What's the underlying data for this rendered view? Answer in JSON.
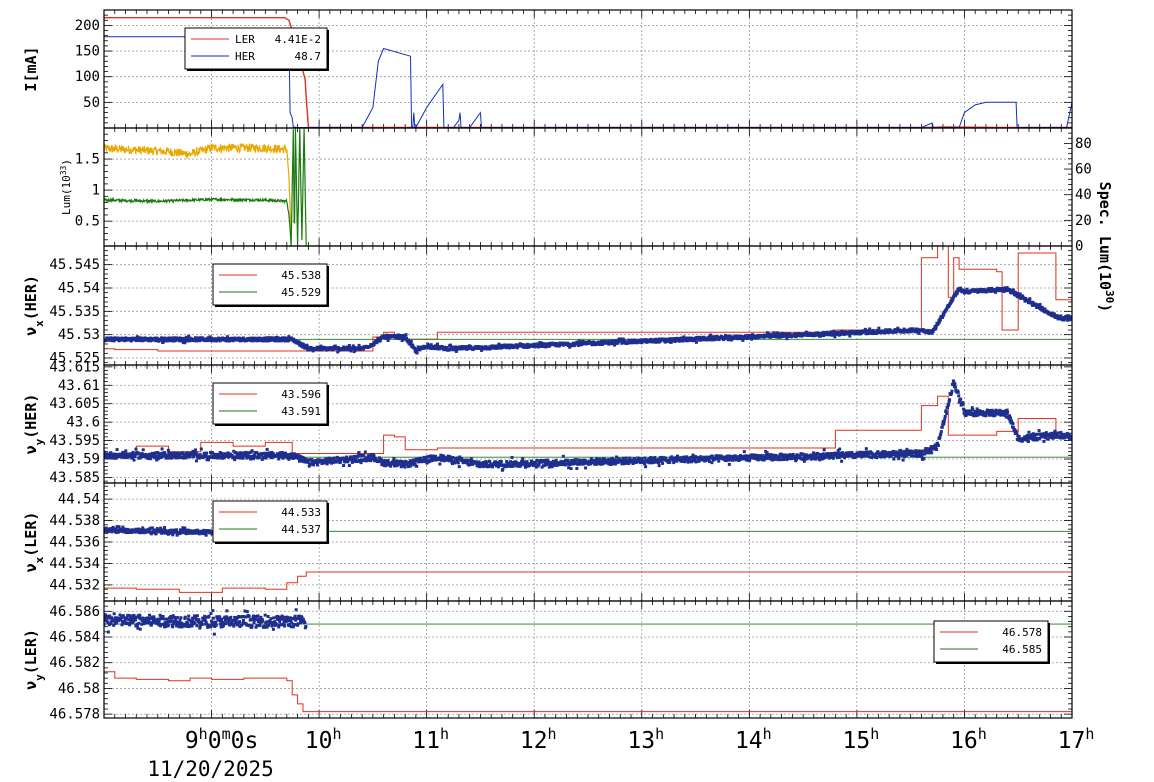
{
  "chart_data": {
    "type": "line",
    "x_axis": {
      "range": [
        8.0,
        17.0
      ],
      "ticks": [
        {
          "value": 9.0,
          "label": "9",
          "sup": "h",
          "extra": "0",
          "extra_sup": "m",
          "extra2": "0s"
        },
        {
          "value": 10.0,
          "label": "10",
          "sup": "h"
        },
        {
          "value": 11.0,
          "label": "11",
          "sup": "h"
        },
        {
          "value": 12.0,
          "label": "12",
          "sup": "h"
        },
        {
          "value": 13.0,
          "label": "13",
          "sup": "h"
        },
        {
          "value": 14.0,
          "label": "14",
          "sup": "h"
        },
        {
          "value": 15.0,
          "label": "15",
          "sup": "h"
        },
        {
          "value": 16.0,
          "label": "16",
          "sup": "h"
        },
        {
          "value": 17.0,
          "label": "17",
          "sup": "h"
        }
      ],
      "date_label": "11/20/2025",
      "grid": true
    },
    "panels": [
      {
        "id": "current",
        "ylabel": "I[mA]",
        "ylim": [
          0,
          230
        ],
        "yticks": [
          50,
          100,
          150,
          200
        ],
        "legend": {
          "placement": "top-left",
          "entries": [
            {
              "name": "LER",
              "value": "4.41E-2",
              "color": "#e0301e"
            },
            {
              "name": "HER",
              "value": "48.7",
              "color": "#1030c0"
            }
          ]
        },
        "series": [
          {
            "name": "LER",
            "color": "#e0301e",
            "width": 1.4,
            "x": [
              8.0,
              9.68,
              9.72,
              9.75,
              9.78,
              9.8,
              9.83,
              9.85,
              9.87,
              9.88,
              9.9,
              9.92,
              11.0,
              14.6,
              15.7,
              15.8,
              16.3,
              16.4,
              17.0
            ],
            "y": [
              215,
              215,
              210,
              190,
              170,
              150,
              130,
              110,
              95,
              60,
              2,
              1,
              1,
              1,
              1,
              2,
              1,
              1,
              1
            ]
          },
          {
            "name": "HER",
            "color": "#1030c0",
            "width": 1.0,
            "x": [
              8.0,
              9.6,
              9.65,
              9.7,
              9.72,
              9.73,
              9.75,
              9.76,
              9.8,
              10.4,
              10.5,
              10.55,
              10.6,
              10.85,
              10.86,
              10.87,
              10.88,
              10.89,
              10.9,
              11.0,
              11.1,
              11.15,
              11.16,
              11.2,
              11.25,
              11.3,
              11.31,
              11.32,
              11.4,
              11.5,
              11.51,
              11.52,
              15.6,
              15.7,
              15.71,
              15.75,
              15.95,
              16.0,
              16.1,
              16.2,
              16.48,
              16.49,
              16.5,
              16.95,
              17.0
            ],
            "y": [
              178,
              178,
              178,
              176,
              173,
              30,
              20,
              2,
              1,
              1,
              40,
              130,
              155,
              140,
              1,
              1,
              30,
              1,
              1,
              40,
              70,
              85,
              1,
              1,
              1,
              15,
              30,
              1,
              1,
              30,
              1,
              1,
              1,
              10,
              1,
              1,
              1,
              30,
              45,
              50,
              50,
              1,
              1,
              1,
              50
            ]
          }
        ]
      },
      {
        "id": "lum",
        "ylabel": "Lum(10",
        "ylabel_sup": "33",
        "ylabel_end": ")",
        "ylim": [
          0.1,
          2.0
        ],
        "yticks": [
          0.5,
          1,
          1.5
        ],
        "right_ylabel": "Spec. Lum(10",
        "right_ylabel_sup": "30",
        "right_ylabel_end": ")",
        "right_ylim": [
          0,
          92
        ],
        "right_yticks": [
          0,
          20,
          40,
          60,
          80
        ],
        "series": [
          {
            "name": "Luminosity",
            "color": "#e8a800",
            "width": 1.2,
            "noise": 0.07,
            "x": [
              8.0,
              8.6,
              8.8,
              9.0,
              9.5,
              9.7,
              9.72,
              9.74
            ],
            "y": [
              1.67,
              1.62,
              1.58,
              1.68,
              1.68,
              1.65,
              1.2,
              0.2
            ]
          },
          {
            "name": "Specific Luminosity",
            "color": "#1a7a10",
            "width": 1.2,
            "noise": 0.02,
            "x": [
              8.0,
              8.5,
              9.0,
              9.5,
              9.7,
              9.72,
              9.74,
              9.76,
              9.77,
              9.78,
              9.8,
              9.82,
              9.84,
              9.86,
              9.88
            ],
            "y": [
              0.84,
              0.82,
              0.85,
              0.84,
              0.82,
              0.6,
              0.1,
              2.0,
              0.1,
              2.0,
              0.1,
              2.0,
              0.2,
              2.0,
              0.1
            ]
          }
        ]
      },
      {
        "id": "nux-her",
        "ylabel": "ν",
        "ylabel_sub": "x",
        "ylabel_end": "(HER)",
        "ylim": [
          45.5235,
          45.549
        ],
        "yticks": [
          45.525,
          45.53,
          45.535,
          45.54,
          45.545
        ],
        "legend": {
          "placement": "top-left",
          "entries": [
            {
              "name": "",
              "value": "45.538",
              "color": "#e0301e"
            },
            {
              "name": "",
              "value": "45.529",
              "color": "#1a7a10"
            }
          ]
        },
        "series": [
          {
            "name": "set",
            "color": "#e0301e",
            "width": 1.0,
            "step": true,
            "x": [
              8.0,
              8.1,
              8.3,
              8.5,
              9.0,
              9.5,
              9.75,
              10.5,
              10.6,
              10.7,
              11.1,
              14.8,
              15.6,
              15.75,
              15.85,
              15.9,
              15.95,
              16.3,
              16.35,
              16.5,
              16.85,
              17.0
            ],
            "y": [
              45.527,
              45.5268,
              45.5268,
              45.5265,
              45.5265,
              45.5265,
              45.5265,
              45.5295,
              45.5305,
              45.529,
              45.5305,
              45.531,
              45.5465,
              45.549,
              45.538,
              45.5465,
              45.544,
              45.5435,
              45.531,
              45.5475,
              45.5375,
              45.5375
            ]
          },
          {
            "name": "ref",
            "color": "#1a7a10",
            "width": 0.9,
            "step": true,
            "x": [
              8.0,
              17.0
            ],
            "y": [
              45.529,
              45.529
            ]
          },
          {
            "name": "meas",
            "color": "#1f2f8f",
            "dots": true,
            "noise": 0.00035,
            "x": [
              8.0,
              9.0,
              9.75,
              9.9,
              10.4,
              10.5,
              10.6,
              10.8,
              10.9,
              11.0,
              11.2,
              11.5,
              15.6,
              15.7,
              15.95,
              16.0,
              16.4,
              16.5,
              16.9,
              17.0
            ],
            "y": [
              45.529,
              45.529,
              45.529,
              45.527,
              45.527,
              45.528,
              45.5295,
              45.5295,
              45.5265,
              45.5275,
              45.527,
              45.5272,
              45.531,
              45.5305,
              45.5398,
              45.5392,
              45.5398,
              45.5383,
              45.5333,
              45.5335
            ]
          }
        ]
      },
      {
        "id": "nuy-her",
        "ylabel": "ν",
        "ylabel_sub": "y",
        "ylabel_end": "(HER)",
        "ylim": [
          43.5835,
          43.6155
        ],
        "yticks": [
          43.585,
          43.59,
          43.595,
          43.6,
          43.605,
          43.61,
          43.615
        ],
        "legend": {
          "placement": "top-left",
          "entries": [
            {
              "name": "",
              "value": "43.596",
              "color": "#e0301e"
            },
            {
              "name": "",
              "value": "43.591",
              "color": "#1a7a10"
            }
          ]
        },
        "series": [
          {
            "name": "set",
            "color": "#e0301e",
            "width": 1.0,
            "step": true,
            "x": [
              8.0,
              8.3,
              8.6,
              8.9,
              9.2,
              9.5,
              9.75,
              10.6,
              10.7,
              10.8,
              11.1,
              14.8,
              15.6,
              15.75,
              15.85,
              16.3,
              16.5,
              16.85,
              17.0
            ],
            "y": [
              43.5915,
              43.5935,
              43.592,
              43.5945,
              43.5935,
              43.5945,
              43.5915,
              43.5965,
              43.596,
              43.5925,
              43.593,
              43.5978,
              43.6045,
              43.607,
              43.5965,
              43.5975,
              43.601,
              43.5965,
              43.5965
            ]
          },
          {
            "name": "ref",
            "color": "#1a7a10",
            "width": 0.9,
            "step": true,
            "x": [
              8.0,
              17.0
            ],
            "y": [
              43.5905,
              43.5905
            ]
          },
          {
            "name": "meas",
            "color": "#1f2f8f",
            "dots": true,
            "noise": 0.0008,
            "x": [
              8.0,
              9.0,
              9.75,
              9.9,
              10.5,
              10.6,
              10.8,
              11.1,
              11.5,
              15.6,
              15.75,
              15.9,
              16.0,
              16.4,
              16.5,
              16.9,
              17.0
            ],
            "y": [
              43.591,
              43.591,
              43.591,
              43.589,
              43.5905,
              43.589,
              43.5885,
              43.5905,
              43.5885,
              43.5915,
              43.5935,
              43.611,
              43.6025,
              43.6025,
              43.5955,
              43.5965,
              43.596
            ]
          }
        ]
      },
      {
        "id": "nux-ler",
        "ylabel": "ν",
        "ylabel_sub": "x",
        "ylabel_end": "(LER)",
        "ylim": [
          44.5305,
          44.5415
        ],
        "yticks": [
          44.532,
          44.534,
          44.536,
          44.538,
          44.54
        ],
        "legend": {
          "placement": "top-left",
          "entries": [
            {
              "name": "",
              "value": "44.533",
              "color": "#e0301e"
            },
            {
              "name": "",
              "value": "44.537",
              "color": "#1a7a10"
            }
          ]
        },
        "series": [
          {
            "name": "set",
            "color": "#e0301e",
            "width": 1.0,
            "step": true,
            "x": [
              8.0,
              8.3,
              8.7,
              9.1,
              9.5,
              9.7,
              9.8,
              9.88,
              17.0
            ],
            "y": [
              44.5317,
              44.5316,
              44.5313,
              44.5317,
              44.5316,
              44.5322,
              44.5328,
              44.5332,
              44.5332
            ]
          },
          {
            "name": "ref",
            "color": "#1a7a10",
            "width": 0.9,
            "step": true,
            "x": [
              8.0,
              17.0
            ],
            "y": [
              44.537,
              44.537
            ]
          },
          {
            "name": "meas",
            "color": "#1f2f8f",
            "dots": true,
            "noise": 0.00018,
            "x": [
              8.0,
              9.0,
              9.88
            ],
            "y": [
              44.5371,
              44.5369,
              44.5367
            ]
          }
        ]
      },
      {
        "id": "nuy-ler",
        "ylabel": "ν",
        "ylabel_sub": "y",
        "ylabel_end": "(LER)",
        "ylim": [
          46.5777,
          46.5868
        ],
        "yticks": [
          46.578,
          46.58,
          46.582,
          46.584,
          46.586
        ],
        "legend": {
          "placement": "right",
          "entries": [
            {
              "name": "",
              "value": "46.578",
              "color": "#e0301e"
            },
            {
              "name": "",
              "value": "46.585",
              "color": "#1a7a10"
            }
          ]
        },
        "series": [
          {
            "name": "set",
            "color": "#e0301e",
            "width": 1.0,
            "step": true,
            "x": [
              8.0,
              8.1,
              8.3,
              8.6,
              8.8,
              9.0,
              9.3,
              9.7,
              9.75,
              9.8,
              9.85,
              17.0
            ],
            "y": [
              46.5813,
              46.5808,
              46.5807,
              46.5806,
              46.5808,
              46.5807,
              46.5808,
              46.5806,
              46.5795,
              46.5788,
              46.5782,
              46.5782
            ]
          },
          {
            "name": "ref",
            "color": "#1a7a10",
            "width": 0.9,
            "step": true,
            "x": [
              8.0,
              17.0
            ],
            "y": [
              46.585,
              46.585
            ]
          },
          {
            "name": "meas",
            "color": "#1f2f8f",
            "dots": true,
            "noise": 0.00045,
            "x": [
              8.0,
              9.0,
              9.88
            ],
            "y": [
              46.5853,
              46.5852,
              46.5852
            ]
          }
        ]
      }
    ]
  }
}
